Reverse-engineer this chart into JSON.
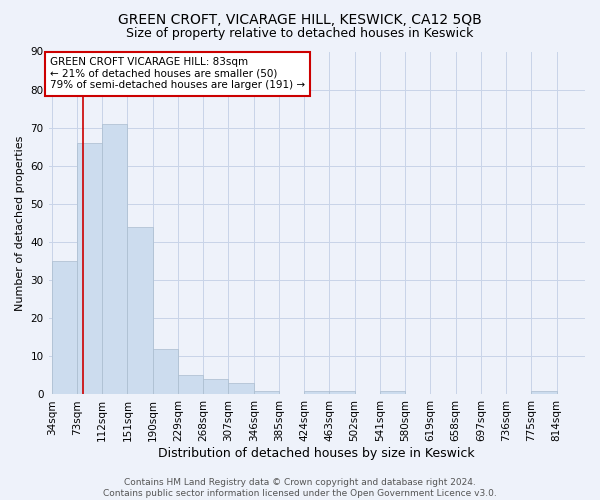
{
  "title": "GREEN CROFT, VICARAGE HILL, KESWICK, CA12 5QB",
  "subtitle": "Size of property relative to detached houses in Keswick",
  "xlabel": "Distribution of detached houses by size in Keswick",
  "ylabel": "Number of detached properties",
  "bin_labels": [
    "34sqm",
    "73sqm",
    "112sqm",
    "151sqm",
    "190sqm",
    "229sqm",
    "268sqm",
    "307sqm",
    "346sqm",
    "385sqm",
    "424sqm",
    "463sqm",
    "502sqm",
    "541sqm",
    "580sqm",
    "619sqm",
    "658sqm",
    "697sqm",
    "736sqm",
    "775sqm",
    "814sqm"
  ],
  "bin_edges": [
    34,
    73,
    112,
    151,
    190,
    229,
    268,
    307,
    346,
    385,
    424,
    463,
    502,
    541,
    580,
    619,
    658,
    697,
    736,
    775,
    814,
    853
  ],
  "bar_heights": [
    35,
    66,
    71,
    44,
    12,
    5,
    4,
    3,
    1,
    0,
    1,
    1,
    0,
    1,
    0,
    0,
    0,
    0,
    0,
    1,
    0
  ],
  "bar_color": "#ccdcee",
  "bar_edge_color": "#aabcce",
  "grid_color": "#c8d4e8",
  "background_color": "#eef2fa",
  "plot_bg_color": "#eef2fa",
  "property_size": 83,
  "red_line_color": "#cc0000",
  "annotation_line1": "GREEN CROFT VICARAGE HILL: 83sqm",
  "annotation_line2": "← 21% of detached houses are smaller (50)",
  "annotation_line3": "79% of semi-detached houses are larger (191) →",
  "annotation_box_color": "#ffffff",
  "annotation_box_edge": "#cc0000",
  "ylim": [
    0,
    90
  ],
  "yticks": [
    0,
    10,
    20,
    30,
    40,
    50,
    60,
    70,
    80,
    90
  ],
  "footer_text": "Contains HM Land Registry data © Crown copyright and database right 2024.\nContains public sector information licensed under the Open Government Licence v3.0.",
  "title_fontsize": 10,
  "subtitle_fontsize": 9,
  "xlabel_fontsize": 9,
  "ylabel_fontsize": 8,
  "tick_fontsize": 7.5,
  "annotation_fontsize": 7.5,
  "footer_fontsize": 6.5
}
